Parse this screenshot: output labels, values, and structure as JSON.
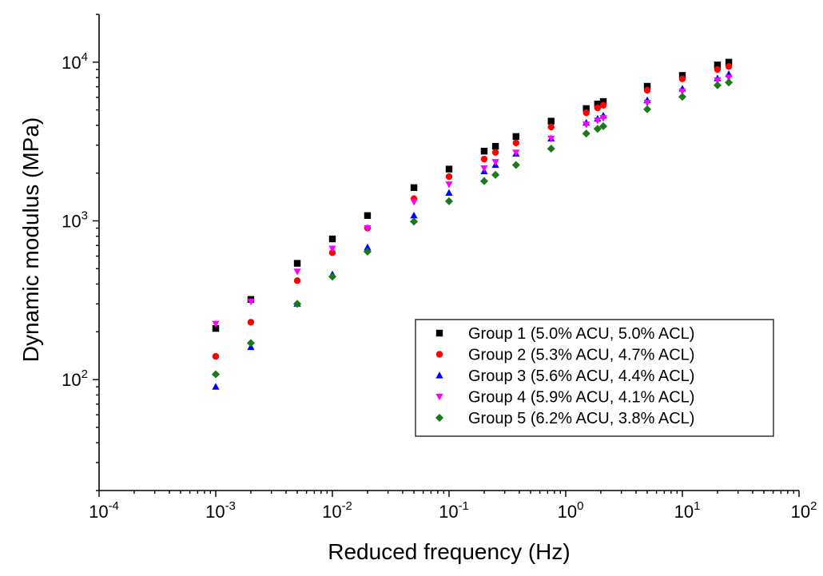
{
  "chart_data": {
    "type": "scatter",
    "title": "",
    "xlabel": "Reduced frequency (Hz)",
    "ylabel": "Dynamic modulus (MPa)",
    "xscale": "log",
    "yscale": "log",
    "xlim": [
      0.0001,
      100
    ],
    "ylim": [
      20,
      20000
    ],
    "x_ticks": [
      {
        "base": "10",
        "exp": "-4",
        "value": 0.0001
      },
      {
        "base": "10",
        "exp": "-3",
        "value": 0.001
      },
      {
        "base": "10",
        "exp": "-2",
        "value": 0.01
      },
      {
        "base": "10",
        "exp": "-1",
        "value": 0.1
      },
      {
        "base": "10",
        "exp": "0",
        "value": 1
      },
      {
        "base": "10",
        "exp": "1",
        "value": 10
      },
      {
        "base": "10",
        "exp": "2",
        "value": 100
      }
    ],
    "y_ticks": [
      {
        "base": "10",
        "exp": "2",
        "value": 100
      },
      {
        "base": "10",
        "exp": "3",
        "value": 1000
      },
      {
        "base": "10",
        "exp": "4",
        "value": 10000
      }
    ],
    "legend_position": "bottom-right",
    "series": [
      {
        "name": "Group 1 (5.0% ACU, 5.0% ACL)",
        "marker": "square",
        "color": "#000000",
        "x": [
          0.001,
          0.002,
          0.005,
          0.01,
          0.02,
          0.05,
          0.1,
          0.2,
          0.25,
          0.375,
          0.75,
          1.5,
          1.875,
          2.1,
          5,
          10,
          20,
          25
        ],
        "y": [
          210,
          320,
          540,
          770,
          1080,
          1620,
          2120,
          2750,
          2950,
          3400,
          4250,
          5100,
          5450,
          5650,
          7050,
          8250,
          9600,
          10000
        ]
      },
      {
        "name": "Group 2 (5.3% ACU, 4.7% ACL)",
        "marker": "circle",
        "color": "#ff0000",
        "x": [
          0.001,
          0.002,
          0.005,
          0.01,
          0.02,
          0.05,
          0.1,
          0.2,
          0.25,
          0.375,
          0.75,
          1.5,
          1.875,
          2.1,
          5,
          10,
          20,
          25
        ],
        "y": [
          140,
          230,
          420,
          630,
          900,
          1380,
          1900,
          2450,
          2700,
          3100,
          3900,
          4800,
          5150,
          5350,
          6650,
          7850,
          9000,
          9400
        ]
      },
      {
        "name": "Group 3 (5.6% ACU, 4.4% ACL)",
        "marker": "triangle-up",
        "color": "#0000ff",
        "x": [
          0.001,
          0.002,
          0.005,
          0.01,
          0.02,
          0.05,
          0.1,
          0.2,
          0.25,
          0.375,
          0.75,
          1.5,
          1.875,
          2.1,
          5,
          10,
          20,
          25
        ],
        "y": [
          90,
          160,
          300,
          460,
          680,
          1080,
          1500,
          2050,
          2250,
          2650,
          3300,
          4150,
          4400,
          4600,
          5750,
          6800,
          7900,
          8400
        ]
      },
      {
        "name": "Group 4 (5.9% ACU, 4.1% ACL)",
        "marker": "triangle-down",
        "color": "#ff00ff",
        "x": [
          0.001,
          0.002,
          0.005,
          0.01,
          0.02,
          0.05,
          0.1,
          0.2,
          0.25,
          0.375,
          0.75,
          1.5,
          1.875,
          2.1,
          5,
          10,
          20,
          25
        ],
        "y": [
          225,
          310,
          480,
          670,
          900,
          1320,
          1700,
          2150,
          2350,
          2700,
          3300,
          4050,
          4300,
          4450,
          5550,
          6550,
          7700,
          8000
        ]
      },
      {
        "name": "Group 5 (6.2% ACU, 3.8% ACL)",
        "marker": "diamond",
        "color": "#1a7a1a",
        "x": [
          0.001,
          0.002,
          0.005,
          0.01,
          0.02,
          0.05,
          0.1,
          0.2,
          0.25,
          0.375,
          0.75,
          1.5,
          1.875,
          2.1,
          5,
          10,
          20,
          25
        ],
        "y": [
          108,
          170,
          300,
          445,
          640,
          990,
          1330,
          1780,
          1950,
          2250,
          2850,
          3550,
          3800,
          3950,
          5050,
          6050,
          7150,
          7450
        ]
      }
    ]
  }
}
